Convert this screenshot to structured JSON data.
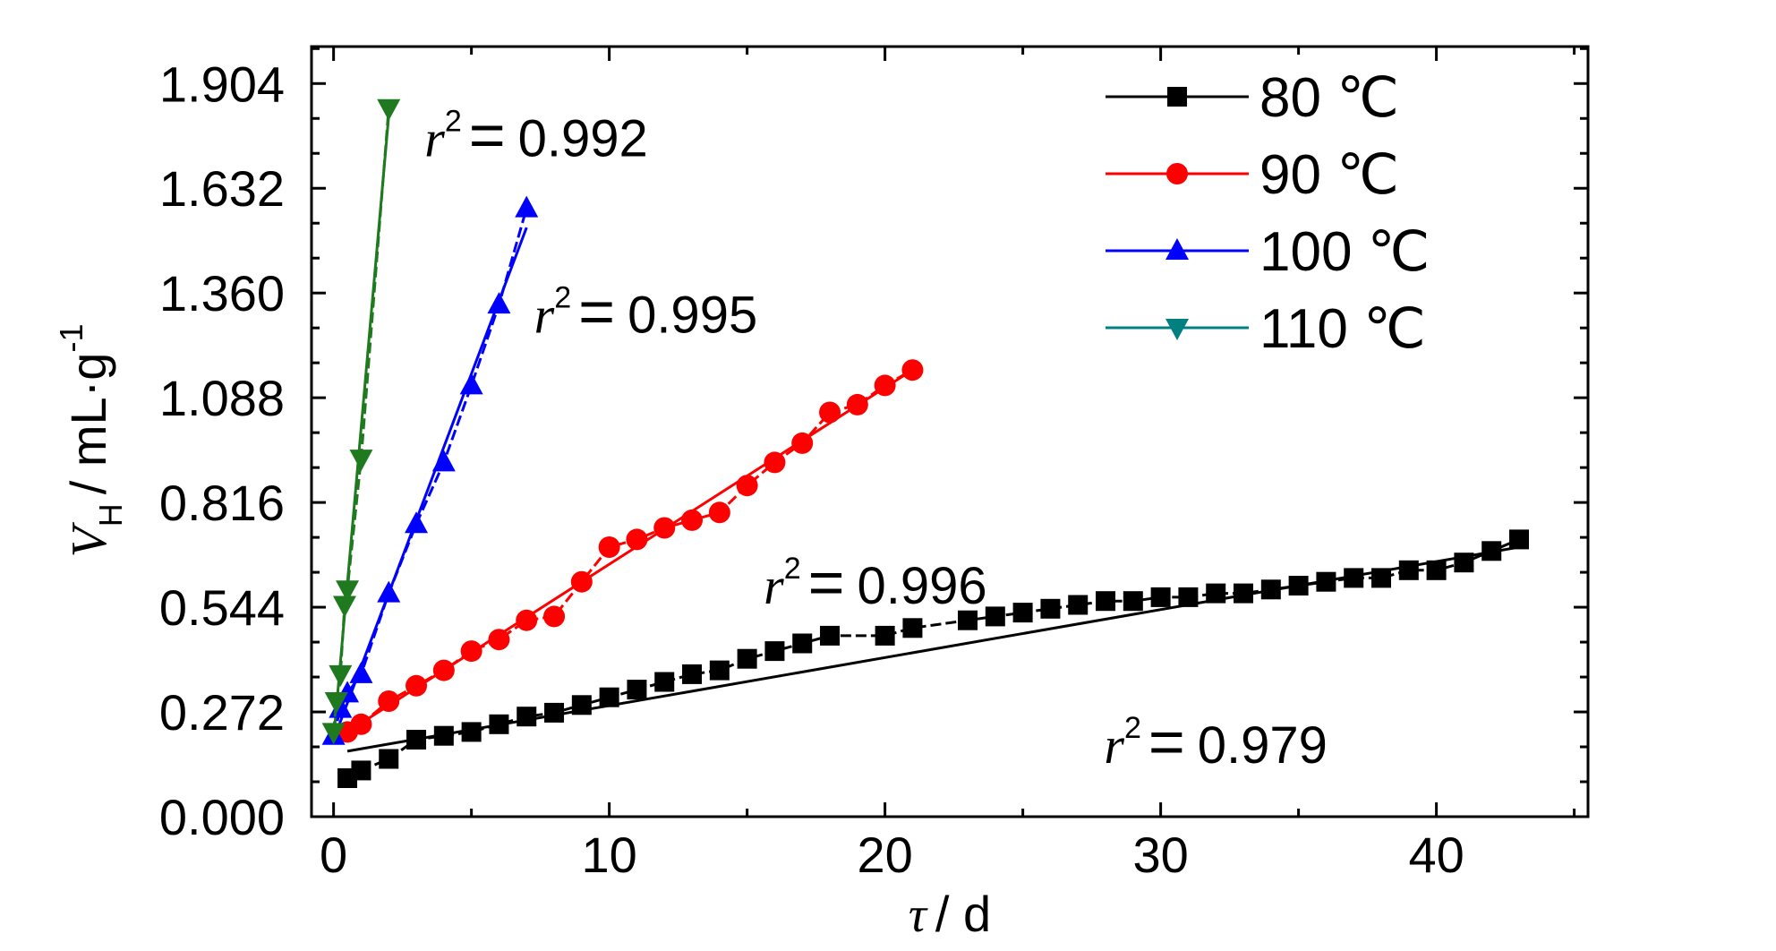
{
  "chart_data": {
    "type": "line",
    "xlabel": {
      "symbol": "τ",
      "unit": "/ d"
    },
    "ylabel": {
      "symbol": "V",
      "subscript": "H",
      "unit": "/ mL·g",
      "superscript": "-1"
    },
    "xlim": [
      -0.8,
      45.5
    ],
    "ylim": [
      0,
      2.0
    ],
    "x_ticks": [
      "0",
      "10",
      "20",
      "30",
      "40"
    ],
    "y_ticks": [
      "0.000",
      "0.272",
      "0.544",
      "0.816",
      "1.088",
      "1.360",
      "1.632",
      "1.904"
    ],
    "legend": {
      "position": "top-right"
    },
    "series": [
      {
        "name": "80 ℃",
        "color": "#000000",
        "marker": "square",
        "x": [
          0.5,
          1,
          2,
          3,
          4,
          5,
          6,
          7,
          8,
          9,
          10,
          11,
          12,
          13,
          14,
          15,
          16,
          17,
          18,
          20,
          21,
          23,
          24,
          25,
          26,
          27,
          28,
          29,
          30,
          31,
          32,
          33,
          34,
          35,
          36,
          37,
          38,
          39,
          40,
          41,
          42,
          43
        ],
        "y": [
          0.1,
          0.12,
          0.15,
          0.2,
          0.21,
          0.22,
          0.24,
          0.26,
          0.27,
          0.29,
          0.31,
          0.33,
          0.35,
          0.37,
          0.38,
          0.41,
          0.43,
          0.45,
          0.47,
          0.47,
          0.49,
          0.51,
          0.52,
          0.53,
          0.54,
          0.55,
          0.56,
          0.56,
          0.57,
          0.57,
          0.58,
          0.58,
          0.59,
          0.6,
          0.61,
          0.62,
          0.62,
          0.64,
          0.64,
          0.66,
          0.69,
          0.72
        ],
        "fit": {
          "x": [
            0.5,
            43
          ],
          "y": [
            0.17,
            0.7
          ],
          "r2_label": "0.979"
        }
      },
      {
        "name": "90 ℃",
        "color": "#ff0000",
        "marker": "circle",
        "x": [
          0.5,
          1,
          2,
          3,
          4,
          5,
          6,
          7,
          8,
          9,
          10,
          11,
          12,
          13,
          14,
          15,
          16,
          17,
          18,
          19,
          20,
          21
        ],
        "y": [
          0.22,
          0.24,
          0.3,
          0.34,
          0.38,
          0.43,
          0.46,
          0.51,
          0.52,
          0.61,
          0.7,
          0.72,
          0.75,
          0.77,
          0.79,
          0.86,
          0.92,
          0.97,
          1.05,
          1.07,
          1.12,
          1.16
        ],
        "fit": {
          "x": [
            0.5,
            21
          ],
          "y": [
            0.22,
            1.16
          ],
          "r2_label": "0.996"
        }
      },
      {
        "name": "100 ℃",
        "color": "#0000ff",
        "marker": "triangle-up",
        "x": [
          0,
          0.25,
          0.5,
          1,
          2,
          3,
          4,
          5,
          6,
          7
        ],
        "y": [
          0.21,
          0.28,
          0.32,
          0.37,
          0.58,
          0.76,
          0.92,
          1.12,
          1.33,
          1.58
        ],
        "fit": {
          "x": [
            0,
            7
          ],
          "y": [
            0.2,
            1.53
          ],
          "r2_label": "0.995"
        }
      },
      {
        "name": "110 ℃",
        "color": "#1f7a1f",
        "legend_color": "#008080",
        "marker": "triangle-down",
        "x": [
          0,
          0.1,
          0.25,
          0.4,
          0.5,
          1,
          2
        ],
        "y": [
          0.22,
          0.3,
          0.37,
          0.55,
          0.59,
          0.93,
          1.84
        ],
        "fit": {
          "x": [
            0,
            2
          ],
          "y": [
            0.2,
            1.82
          ],
          "r2_label": "0.992"
        }
      }
    ],
    "annotations": [
      {
        "text": "0.992",
        "series_index": 3
      },
      {
        "text": "0.995",
        "series_index": 2
      },
      {
        "text": "0.996",
        "series_index": 1
      },
      {
        "text": "0.979",
        "series_index": 0
      }
    ],
    "r2_symbol": "r",
    "r2_superscript": "2",
    "r2_equals": "="
  }
}
